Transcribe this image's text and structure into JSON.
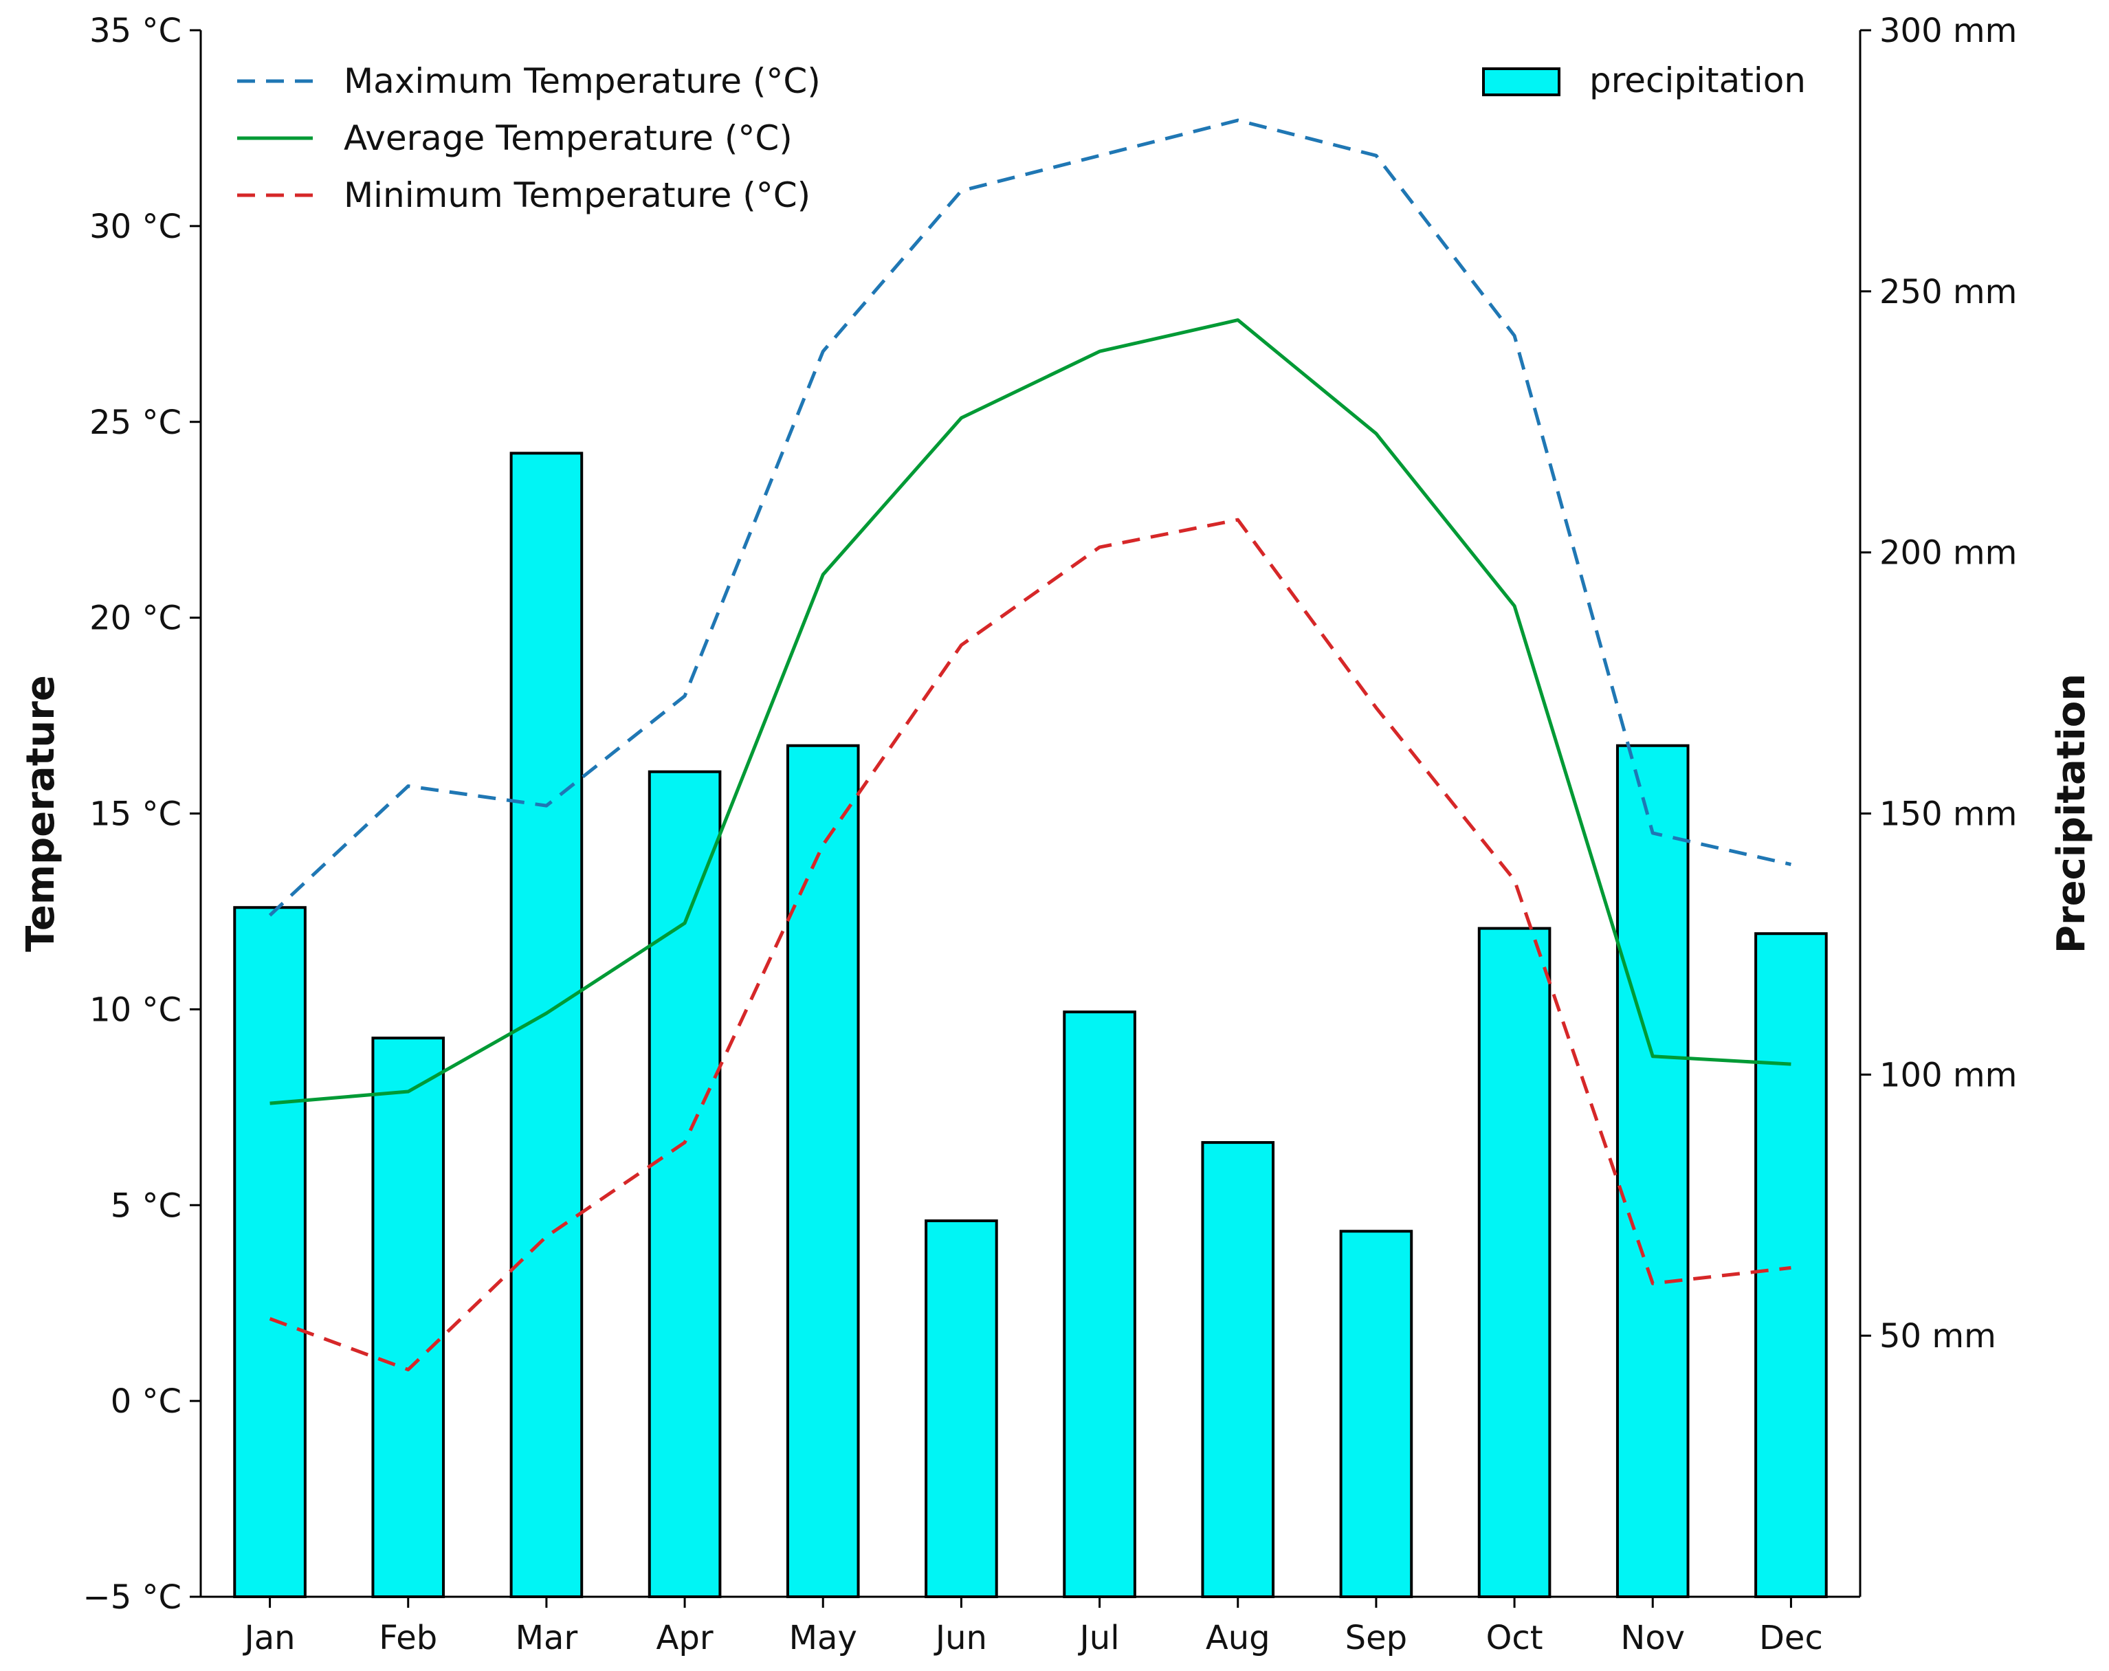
{
  "chart_data": {
    "type": "bar+line",
    "categories": [
      "Jan",
      "Feb",
      "Mar",
      "Apr",
      "May",
      "Jun",
      "Jul",
      "Aug",
      "Sep",
      "Oct",
      "Nov",
      "Dec"
    ],
    "bars": {
      "name": "precipitation",
      "axis": "right",
      "values": [
        132,
        107,
        219,
        158,
        163,
        72,
        112,
        87,
        70,
        128,
        163,
        127
      ],
      "color": "#00f5f5"
    },
    "series": [
      {
        "name": "Maximum Temperature (°C)",
        "axis": "left",
        "values": [
          12.4,
          15.7,
          15.2,
          18.0,
          26.8,
          30.9,
          31.8,
          32.7,
          31.8,
          27.2,
          14.5,
          13.7
        ],
        "color": "#1f77b4",
        "style": "dashed"
      },
      {
        "name": "Average Temperature (°C)",
        "axis": "left",
        "values": [
          7.6,
          7.9,
          9.9,
          12.2,
          21.1,
          25.1,
          26.8,
          27.6,
          24.7,
          20.3,
          8.8,
          8.6
        ],
        "color": "#009a35",
        "style": "solid"
      },
      {
        "name": "Minimum Temperature (°C)",
        "axis": "left",
        "values": [
          2.1,
          0.8,
          4.2,
          6.6,
          14.2,
          19.3,
          21.8,
          22.5,
          17.7,
          13.3,
          3.0,
          3.4
        ],
        "color": "#d62728",
        "style": "dashed"
      }
    ],
    "yleft": {
      "label": "Temperature",
      "ylim": [
        -5,
        35
      ],
      "ticks": [
        -5,
        0,
        5,
        10,
        15,
        20,
        25,
        30,
        35
      ],
      "tick_labels": [
        "−5 °C",
        "0 °C",
        "5 °C",
        "10 °C",
        "15 °C",
        "20 °C",
        "25 °C",
        "30 °C",
        "35 °C"
      ]
    },
    "yright": {
      "label": "Precipitation",
      "ylim": [
        0,
        300
      ],
      "ticks": [
        50,
        100,
        150,
        200,
        250,
        300
      ],
      "tick_labels": [
        "50 mm",
        "100 mm",
        "150 mm",
        "200 mm",
        "250 mm",
        "300 mm"
      ]
    },
    "legend": {
      "lines_position": "top-left",
      "bars_position": "top-right",
      "bars_label": "precipitation"
    },
    "grid": false
  }
}
